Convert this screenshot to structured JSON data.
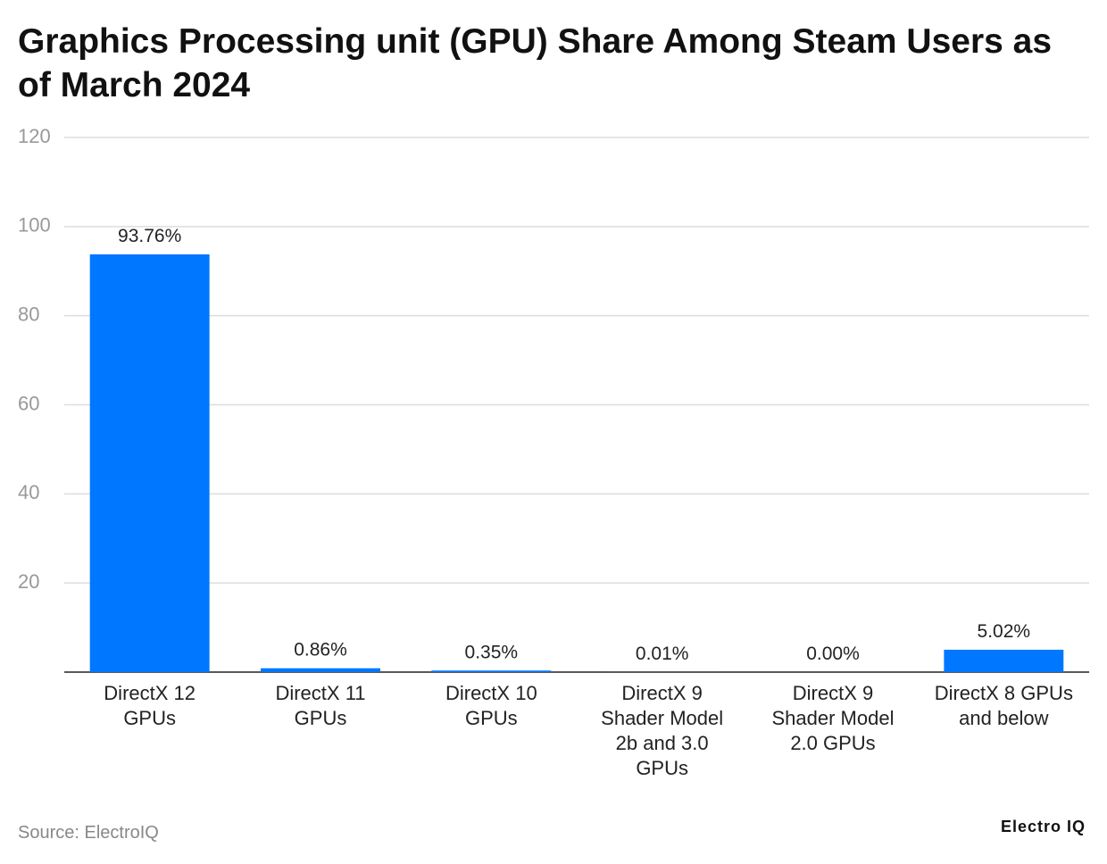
{
  "chart_data": {
    "type": "bar",
    "title": "Graphics Processing unit (GPU) Share Among Steam Users as of March 2024",
    "categories": [
      "DirectX 12 GPUs",
      "DirectX 11 GPUs",
      "DirectX 10 GPUs",
      "DirectX 9 Shader Model 2b and 3.0 GPUs",
      "DirectX 9 Shader Model 2.0 GPUs",
      "DirectX 8 GPUs and below"
    ],
    "values": [
      93.76,
      0.86,
      0.35,
      0.01,
      0.0,
      5.02
    ],
    "value_labels": [
      "93.76%",
      "0.86%",
      "0.35%",
      "0.01%",
      "0.00%",
      "5.02%"
    ],
    "color": "#0077ff",
    "ylim": [
      0,
      120
    ],
    "yticks": [
      20,
      40,
      60,
      80,
      100,
      120
    ],
    "grid": true,
    "source": "Source: ElectroIQ",
    "logo": "Electro IQ"
  }
}
